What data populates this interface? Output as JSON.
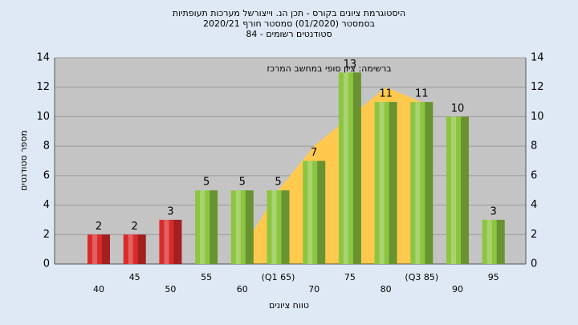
{
  "chart_data": {
    "type": "bar",
    "title": "היסטוגרמת ציונים בקורס - תכן הנ. וייצורשל מערכות תעופתיות",
    "subtitle": "בסמסטר  (01/2020)  סמסטר חורף  2020/21",
    "subtitle2": "סטודנטים רשומים - 84",
    "annotation": "ברשימה: ציון סופי במחשב המרכז",
    "y_label": "מספר סטודנטים",
    "x_label": "טווח ציונים",
    "categories": [
      "40",
      "45",
      "50",
      "55",
      "60",
      "(Q1 65)",
      "70",
      "75",
      "80",
      "(Q3 85)",
      "90",
      "95"
    ],
    "values": [
      2,
      2,
      3,
      5,
      5,
      5,
      7,
      13,
      11,
      11,
      10,
      3
    ],
    "colors": [
      "#d92b2b",
      "#d92b2b",
      "#d92b2b",
      "#8cc540",
      "#8cc540",
      "#8cc540",
      "#8cc540",
      "#8cc540",
      "#8cc540",
      "#8cc540",
      "#8cc540",
      "#8cc540"
    ],
    "curve": {
      "color": "#ffc94d",
      "values": [
        null,
        null,
        null,
        null,
        1,
        5,
        8,
        10,
        12,
        11,
        null,
        null
      ]
    },
    "ylim": [
      0,
      14
    ],
    "yticks": [
      0,
      2,
      4,
      6,
      8,
      10,
      12,
      14
    ],
    "grid": true
  }
}
